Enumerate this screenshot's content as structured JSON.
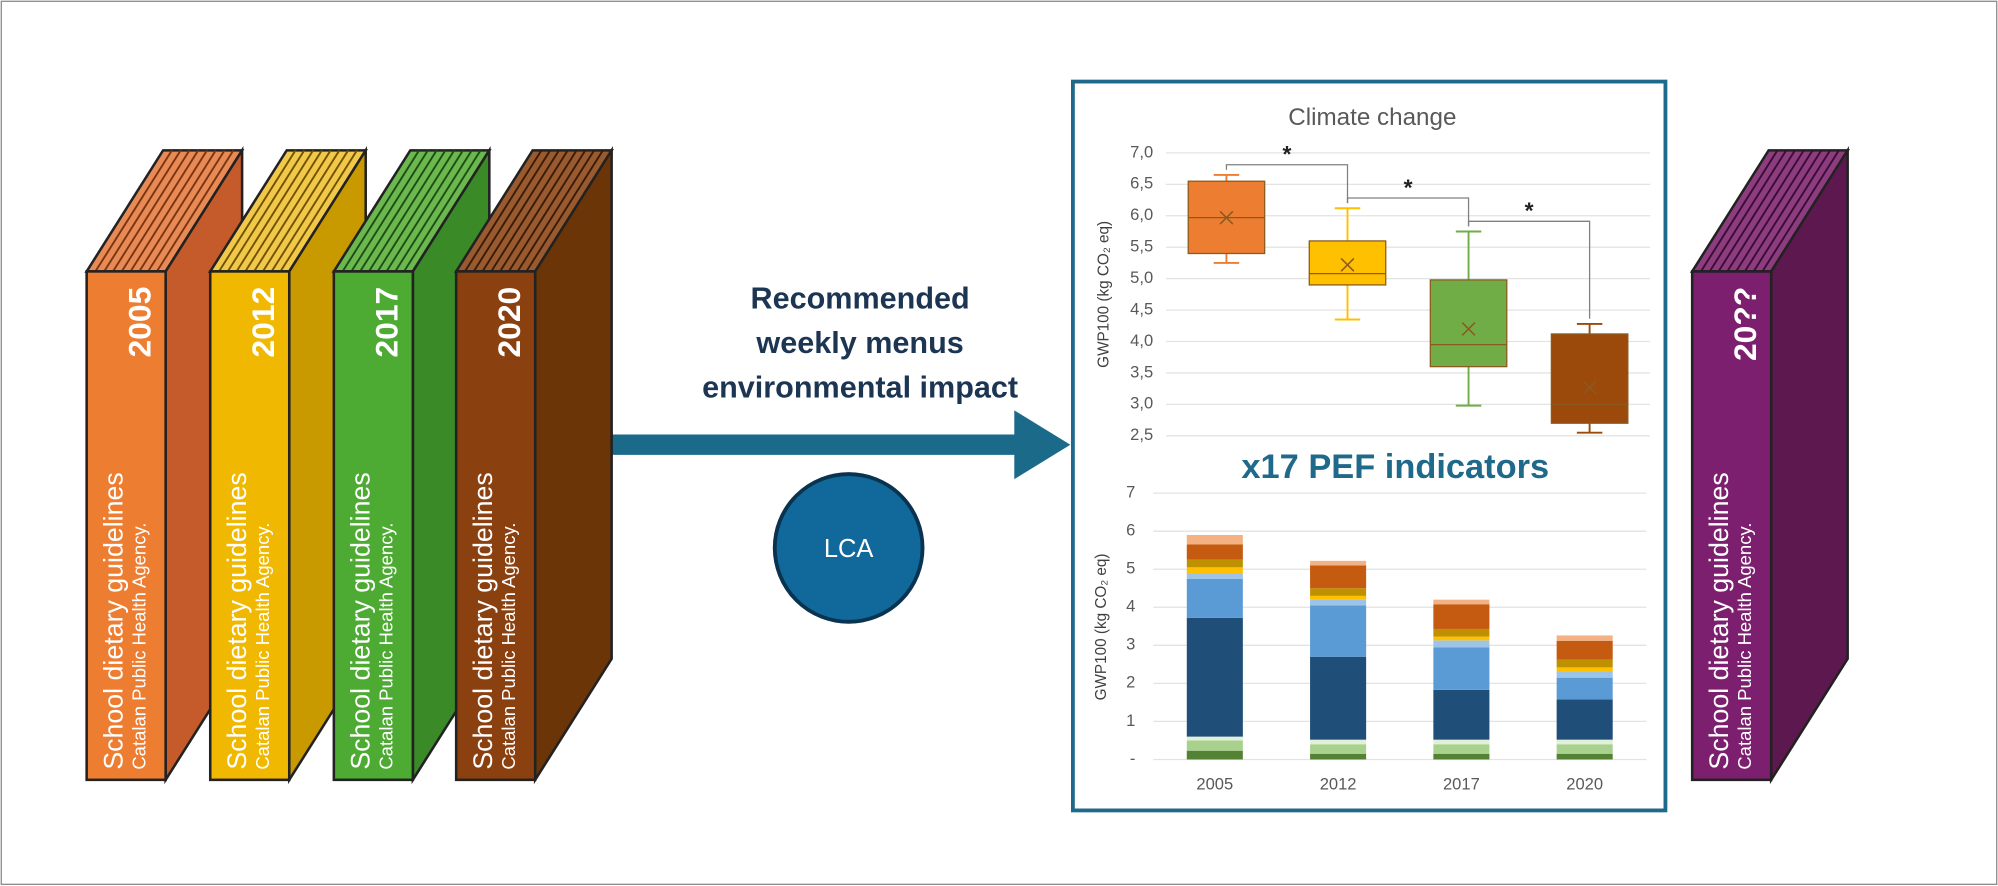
{
  "books": [
    {
      "year": "2005",
      "title": "School dietary guidelines",
      "agency": "Catalan Public Health Agency."
    },
    {
      "year": "2012",
      "title": "School dietary guidelines",
      "agency": "Catalan Public Health Agency."
    },
    {
      "year": "2017",
      "title": "School dietary guidelines",
      "agency": "Catalan Public Health Agency."
    },
    {
      "year": "2020",
      "title": "School dietary guidelines",
      "agency": "Catalan Public Health Agency."
    },
    {
      "year": "20??",
      "title": "School dietary guidelines",
      "agency": "Catalan Public Health Agency."
    }
  ],
  "arrow_label": [
    "Recommended",
    "weekly menus",
    "environmental impact"
  ],
  "method": "LCA",
  "indicators_note": "x17 PEF indicators",
  "chart_data": [
    {
      "type": "box",
      "title": "Climate change",
      "y_label": "GWP100 (kg CO₂ eq)",
      "ylim": [
        2.5,
        7.0
      ],
      "yticks": [
        {
          "value": 7.0,
          "label": "7,0"
        },
        {
          "value": 6.5,
          "label": "6,5"
        },
        {
          "value": 6.0,
          "label": "6,0"
        },
        {
          "value": 5.5,
          "label": "5,5"
        },
        {
          "value": 5.0,
          "label": "5,0"
        },
        {
          "value": 4.5,
          "label": "4,5"
        },
        {
          "value": 4.0,
          "label": "4,0"
        },
        {
          "value": 3.5,
          "label": "3,5"
        },
        {
          "value": 3.0,
          "label": "3,0"
        },
        {
          "value": 2.5,
          "label": "2,5"
        }
      ],
      "grid": true,
      "colors": [
        "#ed7d31",
        "#ffc000",
        "#70ad47",
        "#9c4a0b"
      ],
      "boxes": [
        {
          "min": 5.25,
          "q1": 5.4,
          "median": 5.97,
          "q3": 6.55,
          "max": 6.65,
          "mean": 5.97
        },
        {
          "min": 4.35,
          "q1": 4.9,
          "median": 5.08,
          "q3": 5.6,
          "max": 6.12,
          "mean": 5.22
        },
        {
          "min": 2.98,
          "q1": 3.6,
          "median": 3.95,
          "q3": 4.98,
          "max": 5.75,
          "mean": 4.2
        },
        {
          "min": 2.55,
          "q1": 2.7,
          "median": 3.0,
          "q3": 4.12,
          "max": 4.28,
          "mean": 3.27
        }
      ],
      "annotations": [
        "*",
        "*",
        "*"
      ]
    },
    {
      "type": "bar",
      "stacked": true,
      "y_label": "GWP100 (kg CO₂ eq)",
      "categories": [
        "2005",
        "2012",
        "2017",
        "2020"
      ],
      "ylim": [
        0,
        7
      ],
      "yticks": [
        {
          "value": 0,
          "label": "-"
        },
        1,
        2,
        3,
        4,
        5,
        6,
        7
      ],
      "grid": true,
      "series": [
        {
          "color": "#548235",
          "values": [
            0.23,
            0.15,
            0.15,
            0.15
          ]
        },
        {
          "color": "#a9d18e",
          "values": [
            0.27,
            0.25,
            0.25,
            0.25
          ]
        },
        {
          "color": "#e2f0d9",
          "values": [
            0.1,
            0.12,
            0.12,
            0.12
          ]
        },
        {
          "color": "#1f4e79",
          "values": [
            3.12,
            2.18,
            1.31,
            1.06
          ]
        },
        {
          "color": "#5b9bd5",
          "values": [
            1.03,
            1.35,
            1.12,
            0.57
          ]
        },
        {
          "color": "#9dc3e6",
          "values": [
            0.15,
            0.15,
            0.18,
            0.15
          ]
        },
        {
          "color": "#ffc000",
          "values": [
            0.15,
            0.1,
            0.1,
            0.12
          ]
        },
        {
          "color": "#bf9000",
          "values": [
            0.2,
            0.2,
            0.2,
            0.2
          ]
        },
        {
          "color": "#c55a11",
          "values": [
            0.4,
            0.6,
            0.65,
            0.5
          ]
        },
        {
          "color": "#f4b183",
          "values": [
            0.25,
            0.12,
            0.12,
            0.14
          ]
        }
      ]
    }
  ]
}
